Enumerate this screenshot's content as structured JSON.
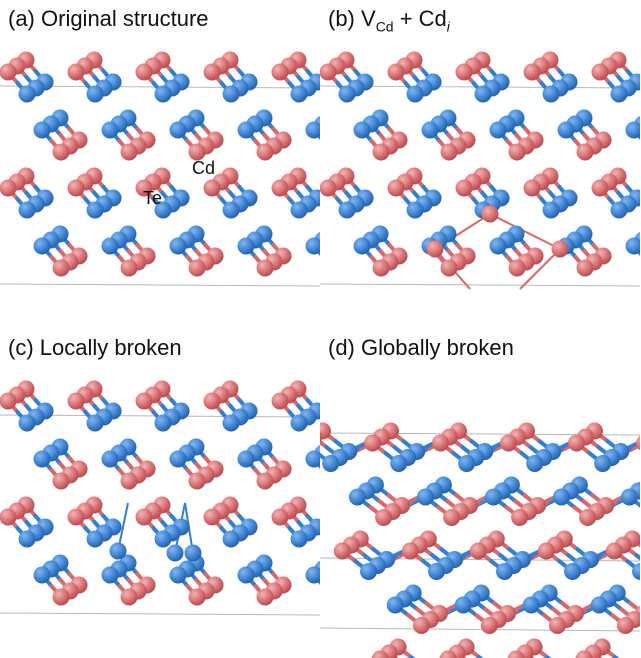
{
  "panels": {
    "a": {
      "title": "(a) Original structure",
      "labels": {
        "cd": "Cd",
        "te": "Te"
      }
    },
    "b": {
      "title_prefix": "(b) V",
      "title_sub1": "Cd",
      "title_mid": " + Cd",
      "title_sub2": "i"
    },
    "c": {
      "title": "(c) Locally broken"
    },
    "d": {
      "title": "(d) Globally broken"
    }
  },
  "colors": {
    "cd": "#d9686a",
    "te": "#2f7fd6",
    "cell_line": "#b8b8b8"
  }
}
